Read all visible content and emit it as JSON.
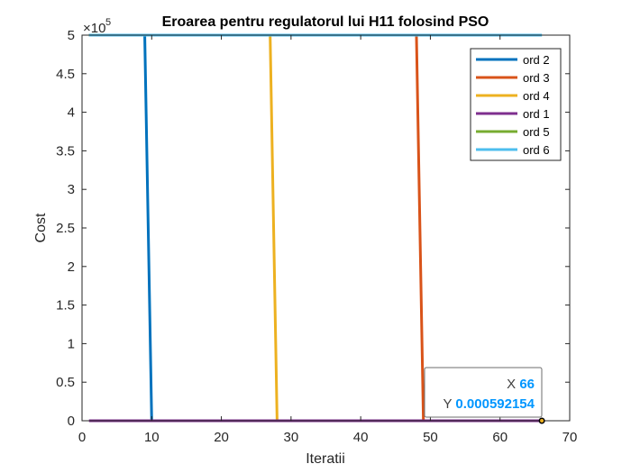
{
  "chart_data": {
    "type": "line",
    "title": "Eroarea pentru regulatorul lui H11 folosind PSO",
    "xlabel": "Iteratii",
    "ylabel": "Cost",
    "xlim": [
      0,
      70
    ],
    "ylim": [
      0,
      500000
    ],
    "x_ticks": [
      0,
      10,
      20,
      30,
      40,
      50,
      60,
      70
    ],
    "y_ticks": [
      0,
      0.5,
      1,
      1.5,
      2,
      2.5,
      3,
      3.5,
      4,
      4.5,
      5
    ],
    "y_exponent_base": "×10",
    "y_exponent_power": "5",
    "y_scale_factor": 100000,
    "legend_placement": "top-right",
    "grid": false,
    "series": [
      {
        "name": "ord 2",
        "color": "#0072BD",
        "x": [
          1,
          9,
          10,
          66
        ],
        "y": [
          500000,
          500000,
          0,
          0
        ]
      },
      {
        "name": "ord 3",
        "color": "#D95319",
        "x": [
          1,
          48,
          49,
          66
        ],
        "y": [
          500000,
          500000,
          0,
          0
        ]
      },
      {
        "name": "ord 4",
        "color": "#EDB120",
        "x": [
          1,
          27,
          28,
          66
        ],
        "y": [
          500000,
          500000,
          0,
          0
        ]
      },
      {
        "name": "ord 1",
        "color": "#7E2F8E",
        "x": [
          1,
          66
        ],
        "y": [
          0.000592154,
          0.000592154
        ]
      },
      {
        "name": "ord 5",
        "color": "#77AC30",
        "x": [
          1,
          66
        ],
        "y": [
          500000,
          500000
        ]
      },
      {
        "name": "ord 6",
        "color": "#4DBEEE",
        "x": [
          1,
          66
        ],
        "y": [
          500000,
          500000
        ]
      }
    ],
    "datatip": {
      "x_label": "X",
      "x_value": "66",
      "y_label": "Y",
      "y_value": "0.000592154",
      "point_x": 66,
      "point_y": 0.000592154,
      "value_color": "#0096FF"
    }
  }
}
